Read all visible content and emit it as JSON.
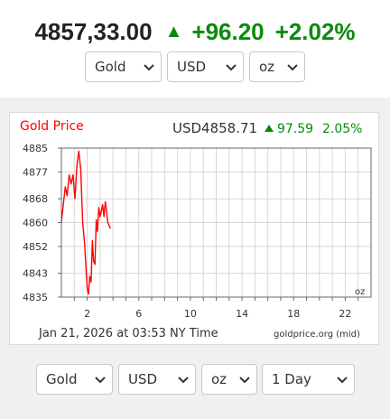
{
  "header": {
    "price": "4857,33.00",
    "change": "+96.20",
    "percent": "+2.02%",
    "up_color": "#0a8a0a"
  },
  "top_selectors": [
    {
      "value": "Gold"
    },
    {
      "value": "USD"
    },
    {
      "value": "oz"
    }
  ],
  "chart_panel": {
    "title": "Gold Price",
    "quote_currency_price": "USD4858.71",
    "quote_change": "97.59",
    "quote_percent": "2.05%",
    "unit_label": "oz",
    "timestamp": "Jan 21, 2026 at 03:53 NY Time",
    "source": "goldprice.org (mid)"
  },
  "chart_data": {
    "type": "line",
    "title": "Gold Price",
    "xlabel": "",
    "ylabel": "",
    "x_ticks": [
      2,
      6,
      10,
      14,
      18,
      22
    ],
    "y_ticks": [
      4835,
      4843,
      4852,
      4860,
      4868,
      4877,
      4885
    ],
    "xlim": [
      0,
      24
    ],
    "ylim": [
      4835,
      4885
    ],
    "grid": true,
    "series": [
      {
        "color": "#ff0000",
        "x": [
          0.0,
          0.15,
          0.3,
          0.45,
          0.6,
          0.75,
          0.9,
          1.05,
          1.2,
          1.35,
          1.5,
          1.65,
          1.8,
          1.9,
          2.0,
          2.1,
          2.2,
          2.3,
          2.4,
          2.5,
          2.6,
          2.7,
          2.8,
          2.9,
          3.0,
          3.1,
          3.2,
          3.3,
          3.4,
          3.5,
          3.6,
          3.7,
          3.8
        ],
        "y": [
          4860,
          4866,
          4872,
          4869,
          4876,
          4873,
          4876,
          4868,
          4879,
          4884,
          4878,
          4860,
          4853,
          4845,
          4838,
          4836,
          4842,
          4840,
          4854,
          4847,
          4846,
          4861,
          4857,
          4865,
          4862,
          4864,
          4866,
          4862,
          4867,
          4864,
          4860,
          4859,
          4858
        ]
      }
    ]
  },
  "bottom_selectors": [
    {
      "value": "Gold"
    },
    {
      "value": "USD"
    },
    {
      "value": "oz"
    },
    {
      "value": "1 Day"
    }
  ]
}
